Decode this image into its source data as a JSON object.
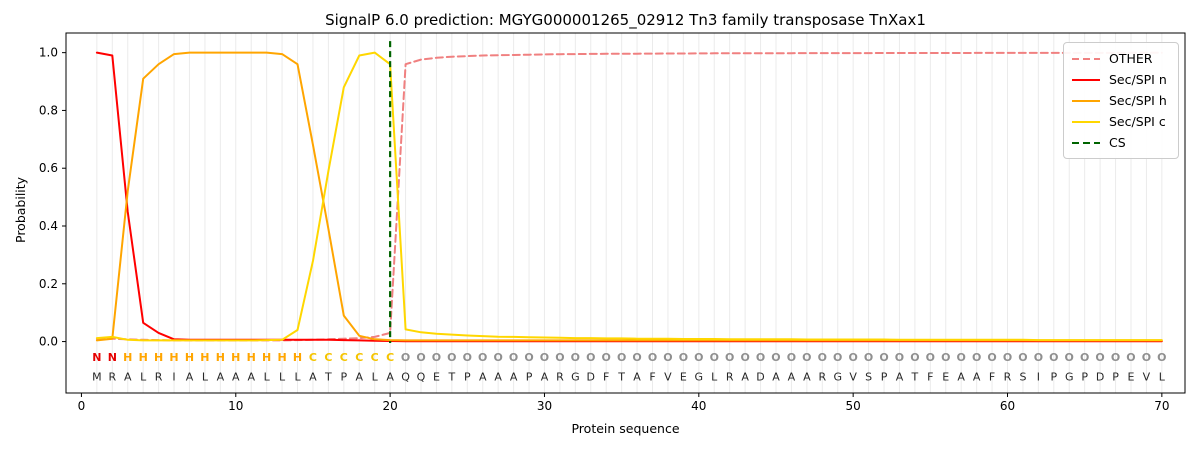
{
  "chart_data": {
    "type": "line",
    "title": "SignalP 6.0 prediction: MGYG000001265_02912 Tn3 family transposase TnXax1",
    "xlabel": "Protein sequence",
    "ylabel": "Probability",
    "xlim": [
      -1,
      71.5
    ],
    "ylim": [
      -0.178,
      1.068
    ],
    "xticks": [
      0,
      10,
      20,
      30,
      40,
      50,
      60,
      70
    ],
    "yticks": [
      0.0,
      0.2,
      0.4,
      0.6,
      0.8,
      1.0
    ],
    "grid": "vertical line at every residue position, light gray",
    "legend_position": "upper right",
    "x_start": 1,
    "series": [
      {
        "name": "OTHER",
        "color": "#f08080",
        "dash": [
          7,
          4
        ],
        "values": [
          0.01,
          0.01,
          0.008,
          0.006,
          0.005,
          0.004,
          0.004,
          0.004,
          0.004,
          0.004,
          0.004,
          0.004,
          0.004,
          0.005,
          0.006,
          0.008,
          0.01,
          0.012,
          0.016,
          0.03,
          0.96,
          0.976,
          0.982,
          0.986,
          0.988,
          0.99,
          0.991,
          0.992,
          0.993,
          0.994,
          0.9945,
          0.995,
          0.9955,
          0.996,
          0.9962,
          0.9965,
          0.9968,
          0.997,
          0.9972,
          0.9974,
          0.9976,
          0.9978,
          0.9979,
          0.998,
          0.9981,
          0.9982,
          0.9983,
          0.9984,
          0.9985,
          0.9986,
          0.9986,
          0.9987,
          0.9987,
          0.9988,
          0.9988,
          0.9989,
          0.9989,
          0.999,
          0.999,
          0.999,
          0.9991,
          0.9991,
          0.9991,
          0.9992,
          0.9992,
          0.9992,
          0.9992,
          0.9993,
          0.9993,
          0.9993
        ]
      },
      {
        "name": "Sec/SPI n",
        "color": "#ff0000",
        "dash": null,
        "values": [
          1.0,
          0.99,
          0.45,
          0.065,
          0.03,
          0.008,
          0.006,
          0.006,
          0.006,
          0.006,
          0.006,
          0.006,
          0.006,
          0.006,
          0.006,
          0.006,
          0.005,
          0.004,
          0.003,
          0.002,
          0.001,
          0.001,
          0.001,
          0.001,
          0.001,
          0.001,
          0.001,
          0.001,
          0.001,
          0.001,
          0.001,
          0.001,
          0.001,
          0.001,
          0.001,
          0.001,
          0.001,
          0.001,
          0.001,
          0.001,
          0.001,
          0.001,
          0.001,
          0.001,
          0.001,
          0.001,
          0.001,
          0.001,
          0.001,
          0.001,
          0.001,
          0.001,
          0.001,
          0.001,
          0.001,
          0.001,
          0.001,
          0.001,
          0.001,
          0.001,
          0.001,
          0.001,
          0.001,
          0.001,
          0.001,
          0.001,
          0.001,
          0.001,
          0.001,
          0.001
        ]
      },
      {
        "name": "Sec/SPI h",
        "color": "#ffa500",
        "dash": null,
        "values": [
          0.004,
          0.01,
          0.52,
          0.91,
          0.96,
          0.995,
          1.0,
          1.0,
          1.0,
          1.0,
          1.0,
          1.0,
          0.995,
          0.96,
          0.68,
          0.39,
          0.09,
          0.02,
          0.008,
          0.005,
          0.004,
          0.004,
          0.004,
          0.004,
          0.004,
          0.004,
          0.004,
          0.004,
          0.004,
          0.004,
          0.004,
          0.004,
          0.004,
          0.004,
          0.004,
          0.004,
          0.004,
          0.004,
          0.004,
          0.004,
          0.004,
          0.004,
          0.004,
          0.004,
          0.004,
          0.004,
          0.004,
          0.004,
          0.004,
          0.004,
          0.004,
          0.004,
          0.004,
          0.004,
          0.004,
          0.004,
          0.004,
          0.004,
          0.004,
          0.004,
          0.004,
          0.004,
          0.004,
          0.004,
          0.004,
          0.004,
          0.004,
          0.004,
          0.004,
          0.004
        ]
      },
      {
        "name": "Sec/SPI c",
        "color": "#ffd700",
        "dash": null,
        "values": [
          0.012,
          0.016,
          0.006,
          0.004,
          0.004,
          0.004,
          0.004,
          0.004,
          0.004,
          0.004,
          0.004,
          0.005,
          0.006,
          0.04,
          0.28,
          0.59,
          0.88,
          0.99,
          1.0,
          0.96,
          0.042,
          0.032,
          0.027,
          0.024,
          0.021,
          0.019,
          0.017,
          0.016,
          0.015,
          0.014,
          0.013,
          0.012,
          0.012,
          0.011,
          0.011,
          0.01,
          0.01,
          0.01,
          0.009,
          0.009,
          0.009,
          0.008,
          0.008,
          0.008,
          0.008,
          0.008,
          0.007,
          0.007,
          0.007,
          0.007,
          0.007,
          0.007,
          0.006,
          0.006,
          0.006,
          0.006,
          0.006,
          0.006,
          0.006,
          0.006,
          0.006,
          0.005,
          0.005,
          0.005,
          0.005,
          0.005,
          0.005,
          0.005,
          0.005,
          0.005
        ]
      }
    ],
    "cs_line": {
      "name": "CS",
      "x": 20,
      "color": "#006400",
      "dash": [
        6,
        4
      ]
    },
    "sequence": "MRALRIALAAALLLATPALAQQETPAAAPARGDFTAFVEGLRADAAARGVSPATFEAAFRSIPGPDPEVL",
    "region_labels": [
      {
        "letter": "N",
        "start": 1,
        "end": 2,
        "color": "#e60000"
      },
      {
        "letter": "H",
        "start": 3,
        "end": 14,
        "color": "#ffa500"
      },
      {
        "letter": "C",
        "start": 15,
        "end": 20,
        "color": "#f5c400"
      },
      {
        "letter": "O",
        "start": 21,
        "end": 70,
        "color": "#8f8f8f"
      }
    ]
  },
  "legend": {
    "entries": [
      {
        "label": "OTHER",
        "color": "#f08080",
        "dashed": true
      },
      {
        "label": "Sec/SPI n",
        "color": "#ff0000",
        "dashed": false
      },
      {
        "label": "Sec/SPI h",
        "color": "#ffa500",
        "dashed": false
      },
      {
        "label": "Sec/SPI c",
        "color": "#ffd700",
        "dashed": false
      },
      {
        "label": "CS",
        "color": "#006400",
        "dashed": true
      }
    ]
  }
}
